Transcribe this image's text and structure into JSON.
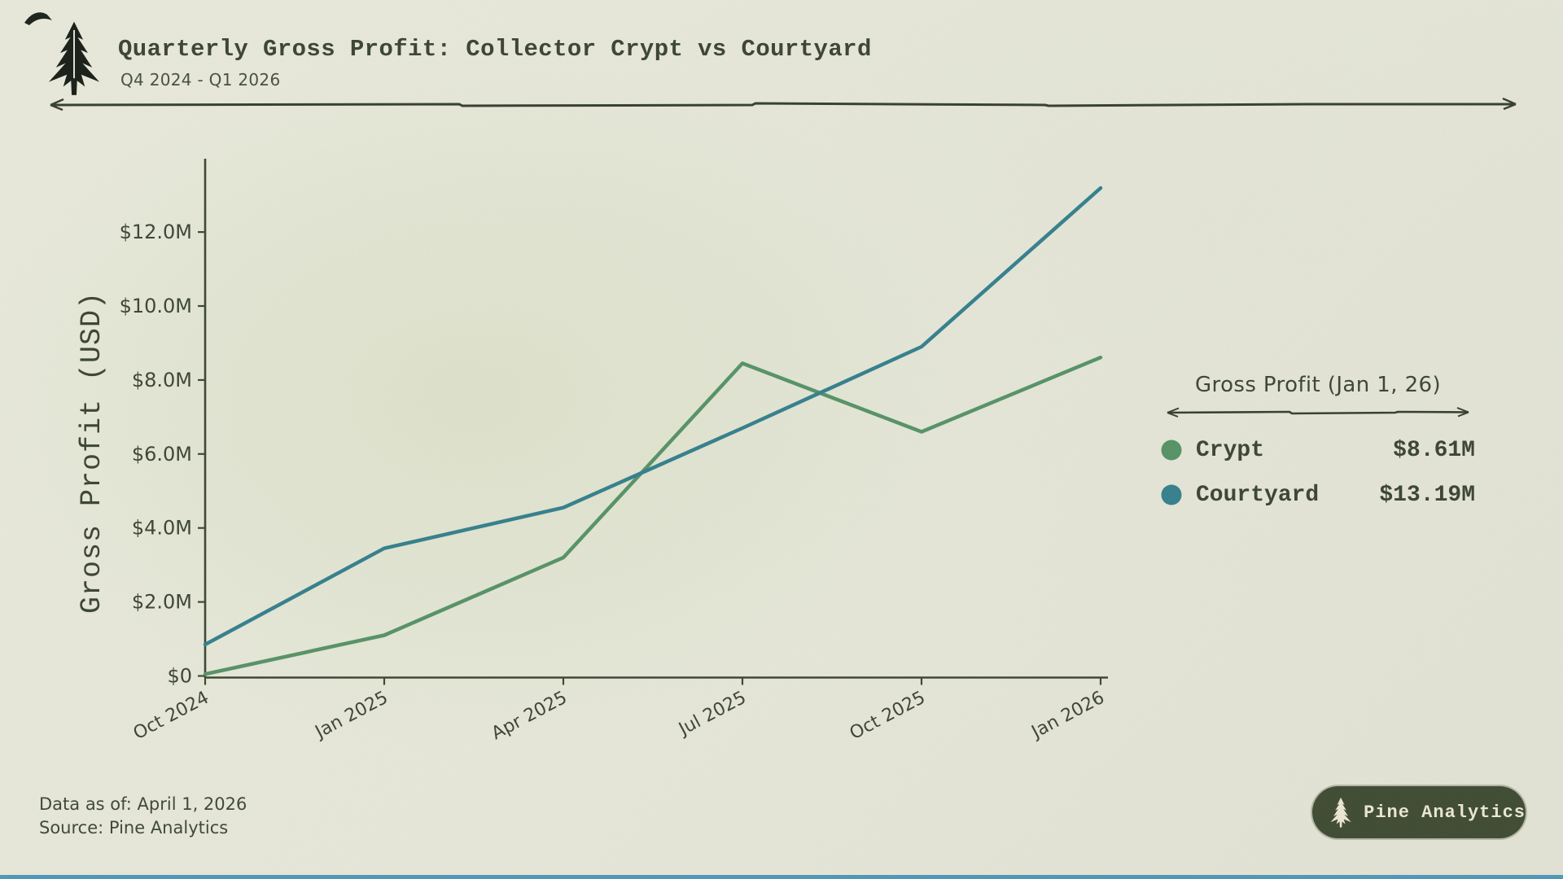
{
  "page": {
    "bg_color": "#e8e9db",
    "accent_text_color": "#39432f",
    "bottom_strip_color": "#4d97b8"
  },
  "header": {
    "title": "Quarterly Gross Profit: Collector Crypt vs Courtyard",
    "subtitle": "Q4 2024 - Q1 2026",
    "logo_icon": "pine-tree-icon"
  },
  "chart_data": {
    "type": "line",
    "title": "Quarterly Gross Profit: Collector Crypt vs Courtyard",
    "subtitle": "Q4 2024 - Q1 2026",
    "unit": "million USD",
    "x": [
      "Oct 2024",
      "Jan 2025",
      "Apr 2025",
      "Jul 2025",
      "Oct 2025",
      "Jan 2026"
    ],
    "series": [
      {
        "name": "Crypt",
        "color": "#559266",
        "values": [
          0.05,
          1.1,
          3.2,
          8.45,
          6.6,
          8.61
        ]
      },
      {
        "name": "Courtyard",
        "color": "#337f8d",
        "values": [
          0.85,
          3.45,
          4.55,
          6.7,
          8.9,
          13.19
        ]
      }
    ],
    "xlabel": "",
    "ylabel": "Gross Profit (USD)",
    "ylim": [
      0,
      14
    ],
    "yticks": [
      {
        "value": 0,
        "label": "$0"
      },
      {
        "value": 2,
        "label": "$2.0M"
      },
      {
        "value": 4,
        "label": "$4.0M"
      },
      {
        "value": 6,
        "label": "$6.0M"
      },
      {
        "value": 8,
        "label": "$8.0M"
      },
      {
        "value": 10,
        "label": "$10.0M"
      },
      {
        "value": 12,
        "label": "$12.0M"
      }
    ],
    "grid": false,
    "legend_position": "right"
  },
  "legend": {
    "title": "Gross Profit (Jan 1, 26)",
    "items": [
      {
        "label": "Crypt",
        "value": "$8.61M",
        "color": "#559266"
      },
      {
        "label": "Courtyard",
        "value": "$13.19M",
        "color": "#337f8d"
      }
    ]
  },
  "footer": {
    "data_as_of": "Data as of: April 1, 2026",
    "source": "Source: Pine Analytics",
    "badge": {
      "label": "Pine Analytics",
      "icon": "pine-tree-icon"
    }
  }
}
